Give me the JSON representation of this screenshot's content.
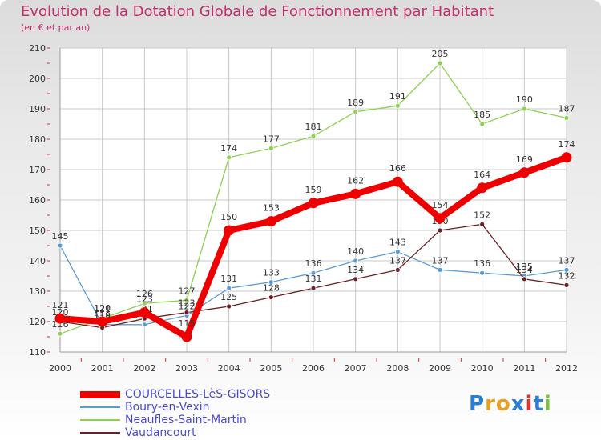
{
  "header": {
    "title": "Evolution de la Dotation Globale de Fonctionnement par Habitant",
    "subtitle": "(en € et par an)"
  },
  "chart_data": {
    "type": "line",
    "title": "Evolution de la Dotation Globale de Fonctionnement par Habitant",
    "subtitle": "(en € et par an)",
    "xlabel": "",
    "ylabel": "",
    "x": [
      "2000",
      "2001",
      "2002",
      "2003",
      "2004",
      "2005",
      "2006",
      "2007",
      "2008",
      "2009",
      "2010",
      "2011",
      "2012"
    ],
    "ylim": [
      110,
      210
    ],
    "yticks": [
      "110",
      "120",
      "130",
      "140",
      "150",
      "160",
      "170",
      "180",
      "190",
      "200",
      "210"
    ],
    "grid": true,
    "legend_position": "bottom-left",
    "series": [
      {
        "name": "COURCELLES-LèS-GISORS",
        "color": "#ee0000",
        "emphasis": true,
        "values": [
          121,
          120,
          123,
          115,
          150,
          153,
          159,
          162,
          166,
          154,
          164,
          169,
          174
        ]
      },
      {
        "name": "Boury-en-Vexin",
        "color": "#5b9bd5",
        "values": [
          145,
          119,
          119,
          122,
          131,
          133,
          136,
          140,
          143,
          137,
          136,
          135,
          137
        ]
      },
      {
        "name": "Neaufles-Saint-Martin",
        "color": "#8fd14f",
        "values": [
          116,
          121,
          126,
          127,
          174,
          177,
          181,
          189,
          191,
          205,
          185,
          190,
          187
        ]
      },
      {
        "name": "Vaudancourt",
        "color": "#6b1f24",
        "values": [
          120,
          118,
          121,
          123,
          125,
          128,
          131,
          134,
          137,
          150,
          152,
          134,
          132
        ]
      }
    ]
  },
  "legend": {
    "items": [
      "COURCELLES-LèS-GISORS",
      "Boury-en-Vexin",
      "Neaufles-Saint-Martin",
      "Vaudancourt"
    ]
  },
  "brand": {
    "letters": [
      "P",
      "r",
      "o",
      "x",
      "i",
      "t",
      "i"
    ],
    "colors": [
      "#2a7fd4",
      "#e8a020",
      "#e8a020",
      "#2a7fd4",
      "#e03030",
      "#2a7fd4",
      "#7ac143"
    ]
  }
}
